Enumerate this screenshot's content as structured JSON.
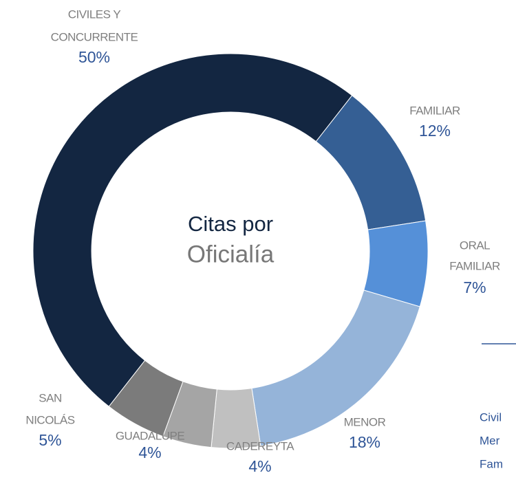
{
  "chart_data": {
    "type": "donut",
    "title": [
      "Citas por",
      "Oficialía"
    ],
    "categories": [
      [
        "CIVILES Y",
        "CONCURRENTE"
      ],
      [
        "FAMILIAR"
      ],
      [
        "ORAL",
        "FAMILIAR"
      ],
      [
        "MENOR"
      ],
      [
        "CADEREYTA"
      ],
      [
        "GUADALUPE"
      ],
      [
        "SAN",
        "NICOLÁS"
      ]
    ],
    "values": [
      50,
      12,
      7,
      18,
      4,
      4,
      5
    ],
    "value_labels": [
      "50%",
      "12%",
      "7%",
      "18%",
      "4%",
      "4%",
      "5%"
    ],
    "colors": [
      "#132641",
      "#355f94",
      "#5590d8",
      "#95b4d9",
      "#c0c0c0",
      "#a5a5a5",
      "#7b7b7b"
    ],
    "side_legend": [
      "Civil",
      "Mer",
      "Fam"
    ]
  }
}
